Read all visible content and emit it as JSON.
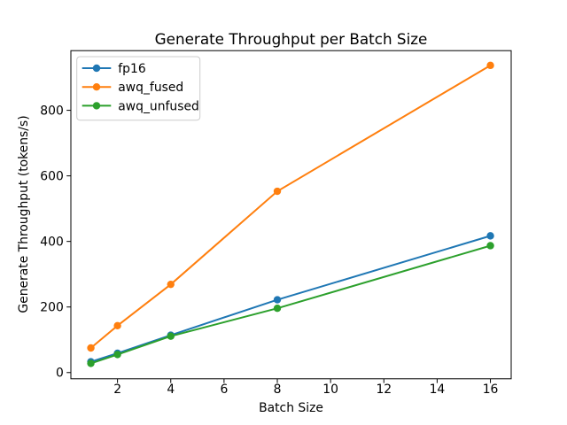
{
  "chart_data": {
    "type": "line",
    "title": "Generate Throughput per Batch Size",
    "xlabel": "Batch Size",
    "ylabel": "Generate Throughput (tokens/s)",
    "x": [
      1,
      2,
      4,
      8,
      16
    ],
    "series": [
      {
        "name": "fp16",
        "color": "#1f77b4",
        "values": [
          33,
          59,
          114,
          222,
          417
        ]
      },
      {
        "name": "awq_fused",
        "color": "#ff7f0e",
        "values": [
          75,
          143,
          269,
          553,
          937
        ]
      },
      {
        "name": "awq_unfused",
        "color": "#2ca02c",
        "values": [
          28,
          55,
          111,
          196,
          387
        ]
      }
    ],
    "xlim": [
      0.25,
      16.78
    ],
    "ylim": [
      -19,
      982
    ],
    "xticks": [
      2,
      4,
      6,
      8,
      10,
      12,
      14,
      16
    ],
    "yticks": [
      0,
      200,
      400,
      600,
      800
    ],
    "legend_position": "upper left",
    "grid": false,
    "marker": "circle",
    "line_width": 2,
    "marker_radius": 4.2,
    "background_color": "#ffffff",
    "spine_color": "#000000",
    "legend_border_color": "#cccccc"
  }
}
